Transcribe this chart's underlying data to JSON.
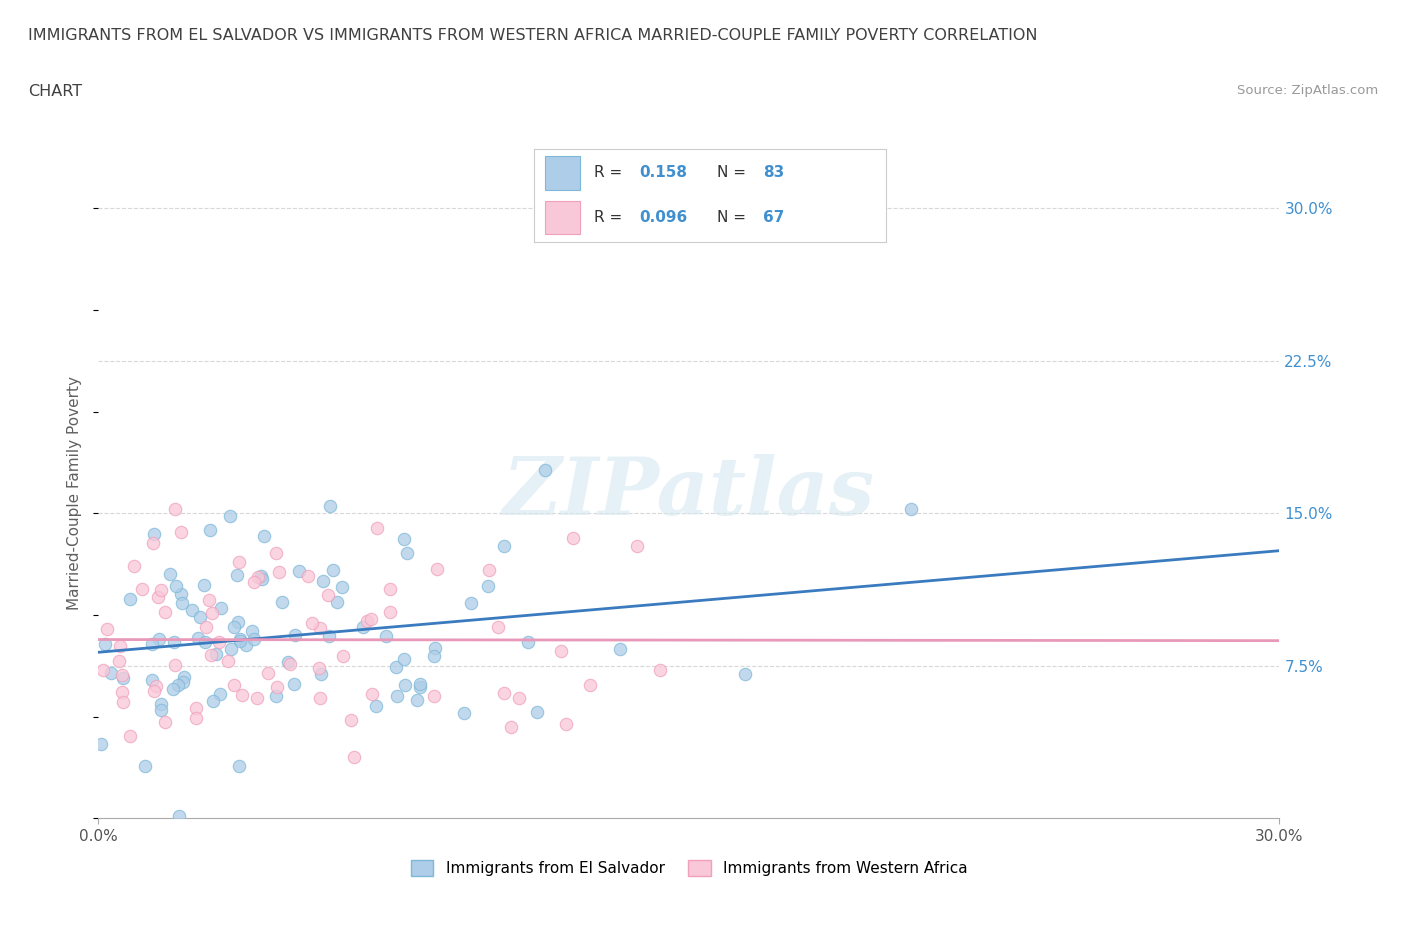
{
  "title_line1": "IMMIGRANTS FROM EL SALVADOR VS IMMIGRANTS FROM WESTERN AFRICA MARRIED-COUPLE FAMILY POVERTY CORRELATION",
  "title_line2": "CHART",
  "source": "Source: ZipAtlas.com",
  "ylabel": "Married-Couple Family Poverty",
  "xlim": [
    0.0,
    0.3
  ],
  "ylim": [
    0.0,
    0.32
  ],
  "ytick_vals": [
    0.075,
    0.15,
    0.225,
    0.3
  ],
  "ytick_labels": [
    "7.5%",
    "15.0%",
    "22.5%",
    "30.0%"
  ],
  "xtick_vals": [
    0.0,
    0.3
  ],
  "xtick_labels": [
    "0.0%",
    "30.0%"
  ],
  "watermark": "ZIPatlas",
  "legend_r1_val": "0.158",
  "legend_n1_val": "83",
  "legend_r2_val": "0.096",
  "legend_n2_val": "67",
  "color_blue_fill": "#aecde8",
  "color_blue_edge": "#7eb8d8",
  "color_pink_fill": "#f9c8d8",
  "color_pink_edge": "#f0a0bc",
  "color_blue_line": "#3a7bbf",
  "color_pink_line": "#e898b8",
  "color_ytick": "#4090d0",
  "background_color": "#ffffff",
  "grid_color": "#d8d8d8",
  "title_color": "#404040",
  "source_color": "#999999",
  "ylabel_color": "#606060",
  "watermark_color": "#d5e8f0",
  "watermark_alpha": 0.6
}
